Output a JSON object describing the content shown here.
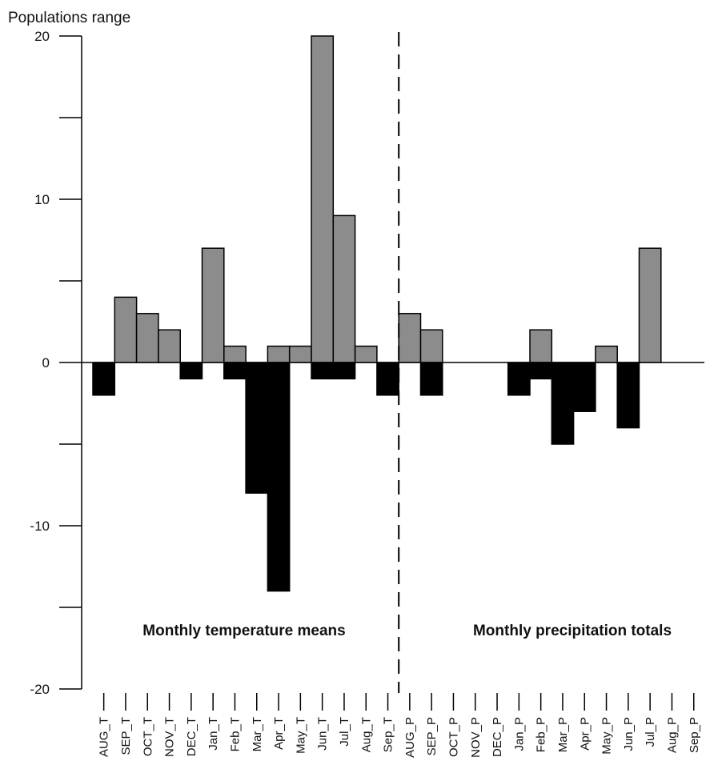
{
  "chart_data": {
    "type": "bar",
    "ylabel": "Populations range",
    "ylim": [
      -20,
      20
    ],
    "yticks": [
      -20,
      -10,
      0,
      10,
      20
    ],
    "categories": [
      "AUG_T",
      "SEP_T",
      "OCT_T",
      "NOV_T",
      "DEC_T",
      "Jan_T",
      "Feb_T",
      "Mar_T",
      "Apr_T",
      "May_T",
      "Jun_T",
      "Jul_T",
      "Aug_T",
      "Sep_T",
      "AUG_P",
      "SEP_P",
      "OCT_P",
      "NOV_P",
      "DEC_P",
      "Jan_P",
      "Feb_P",
      "Mar_P",
      "Apr_P",
      "May_P",
      "Jun_P",
      "Jul_P",
      "Aug_P",
      "Sep_P"
    ],
    "series": [
      {
        "values": [
          0,
          4,
          3,
          2,
          0,
          7,
          1,
          0,
          1,
          1,
          20,
          9,
          1,
          0,
          3,
          2,
          0,
          0,
          0,
          0,
          2,
          0,
          0,
          1,
          0,
          7,
          0,
          0
        ],
        "color": "#8c8c8c"
      },
      {
        "values": [
          -2,
          0,
          0,
          0,
          -1,
          0,
          -1,
          -8,
          -14,
          0,
          -1,
          -1,
          0,
          -2,
          0,
          -2,
          0,
          0,
          0,
          -2,
          -1,
          -5,
          -3,
          0,
          -4,
          0,
          0,
          0
        ],
        "color": "#000000"
      }
    ],
    "annotations": [
      "Monthly temperature means",
      "Monthly precipitation totals"
    ],
    "divider_after_index": 13,
    "grid": false
  }
}
